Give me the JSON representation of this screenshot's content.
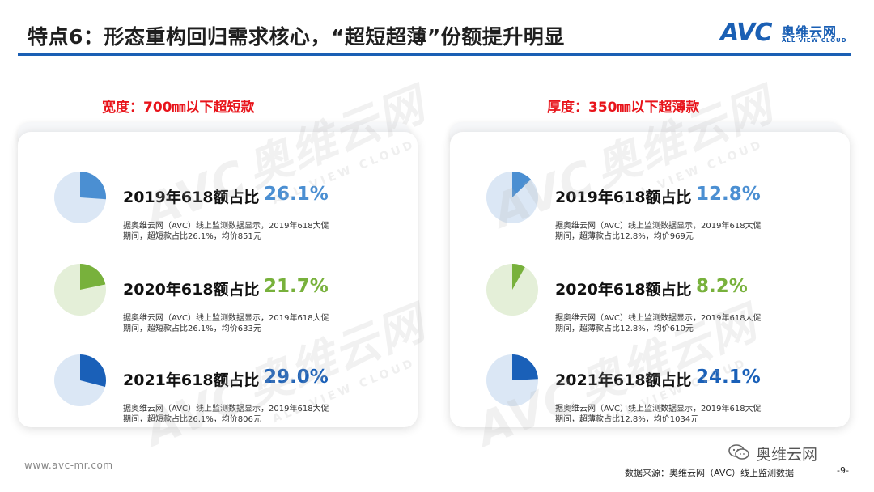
{
  "title": "特点6：形态重构回归需求核心，“超短超薄”份额提升明显",
  "logo": {
    "mark": "AVC",
    "cn": "奥维云网",
    "en": "ALL VIEW CLOUD"
  },
  "watermark": {
    "mark": "AVC",
    "cn": "奥维云网",
    "en": "ALL VIEW CLOUD"
  },
  "footer": {
    "url": "www.avc-mr.com",
    "wechat": "奥维云网",
    "source": "数据来源：奥维云网（AVC）线上监测数据",
    "page": "-9-"
  },
  "colors": {
    "blue_light": "#4b8fd2",
    "green": "#78b13c",
    "blue_dark": "#1a60b8",
    "bg_blue": "#dbe7f5",
    "bg_green": "#e4efd8",
    "heading_red": "#e8141b"
  },
  "chart_data": [
    {
      "type": "pie",
      "title": "宽度：700㎜以下超短款",
      "categories": [
        "2019年618额占比",
        "2020年618额占比",
        "2021年618额占比"
      ],
      "series": [
        {
          "values": [
            26.1,
            21.7,
            29.0
          ]
        }
      ],
      "value_labels": [
        "26.1%",
        "21.7%",
        "29.0%"
      ],
      "notes": [
        "据奥维云网（AVC）线上监测数据显示，2019年618大促期间，超短款占比26.1%，均价851元",
        "据奥维云网（AVC）线上监测数据显示，2019年618大促期间，超短款占比26.1%，均价633元",
        "据奥维云网（AVC）线上监测数据显示，2019年618大促期间，超短款占比26.1%，均价806元"
      ]
    },
    {
      "type": "pie",
      "title": "厚度：350㎜以下超薄款",
      "categories": [
        "2019年618额占比",
        "2020年618额占比",
        "2021年618额占比"
      ],
      "series": [
        {
          "values": [
            12.8,
            8.2,
            24.1
          ]
        }
      ],
      "value_labels": [
        "12.8%",
        "8.2%",
        "24.1%"
      ],
      "notes": [
        "据奥维云网（AVC）线上监测数据显示，2019年618大促期间，超薄款占比12.8%，均价969元",
        "据奥维云网（AVC）线上监测数据显示，2019年618大促期间，超薄款占比12.8%，均价610元",
        "据奥维云网（AVC）线上监测数据显示，2019年618大促期间，超薄款占比12.8%，均价1034元"
      ]
    }
  ]
}
